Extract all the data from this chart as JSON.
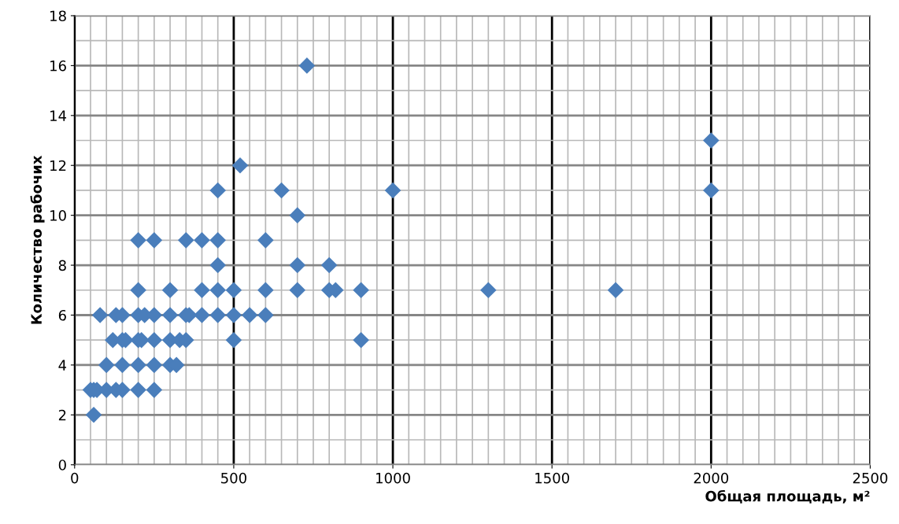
{
  "chart_data": {
    "type": "scatter",
    "xlabel": "Общая площадь, м²",
    "ylabel": "Количество рабочих",
    "marker": "diamond",
    "grid": true,
    "xlim": [
      0,
      2500
    ],
    "xticks": [
      0,
      500,
      1000,
      1500,
      2000,
      2500
    ],
    "ylim": [
      0,
      18
    ],
    "yticks": [
      0,
      2,
      4,
      6,
      8,
      10,
      12,
      14,
      16,
      18
    ],
    "series": [
      {
        "color": "#4a7ebb",
        "x": [
          60,
          50,
          60,
          70,
          100,
          130,
          150,
          200,
          250,
          100,
          150,
          200,
          250,
          300,
          320,
          120,
          150,
          160,
          200,
          210,
          250,
          300,
          330,
          350,
          500,
          900,
          80,
          130,
          150,
          200,
          220,
          250,
          300,
          350,
          360,
          400,
          450,
          500,
          550,
          600,
          200,
          300,
          400,
          450,
          500,
          600,
          700,
          800,
          820,
          900,
          1300,
          1700,
          450,
          700,
          800,
          200,
          250,
          350,
          400,
          450,
          600,
          700,
          450,
          650,
          1000,
          2000,
          520,
          2000,
          730
        ],
        "values": [
          2,
          3,
          3,
          3,
          3,
          3,
          3,
          3,
          3,
          4,
          4,
          4,
          4,
          4,
          4,
          5,
          5,
          5,
          5,
          5,
          5,
          5,
          5,
          5,
          5,
          5,
          6,
          6,
          6,
          6,
          6,
          6,
          6,
          6,
          6,
          6,
          6,
          6,
          6,
          6,
          7,
          7,
          7,
          7,
          7,
          7,
          7,
          7,
          7,
          7,
          7,
          7,
          8,
          8,
          8,
          9,
          9,
          9,
          9,
          9,
          9,
          10,
          11,
          11,
          11,
          11,
          12,
          13,
          16
        ]
      }
    ]
  }
}
